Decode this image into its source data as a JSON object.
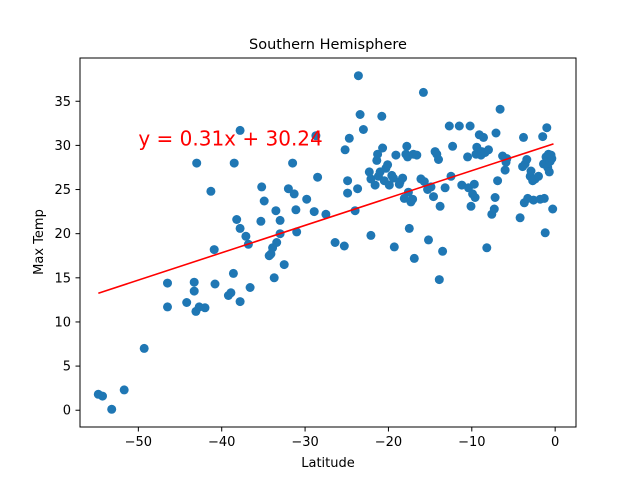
{
  "chart_data": {
    "type": "scatter",
    "title": "Southern Hemisphere",
    "xlabel": "Latitude",
    "ylabel": "Max Temp",
    "xlim": [
      -57,
      2.5
    ],
    "ylim": [
      -1.9,
      39.9
    ],
    "xticks": [
      -50,
      -40,
      -30,
      -20,
      -10,
      0
    ],
    "yticks": [
      0,
      5,
      10,
      15,
      20,
      25,
      30,
      35
    ],
    "grid": false,
    "marker_color": "#1f77b4",
    "line_color": "#ff0000",
    "regression": {
      "slope": 0.31,
      "intercept": 30.24,
      "x_range": [
        -54.8,
        -0.2
      ]
    },
    "annotation": {
      "text": "y = 0.31x + 30.24",
      "x": -50,
      "y": 30,
      "color": "#ff0000"
    },
    "points": [
      [
        -54.8,
        1.8
      ],
      [
        -54.3,
        1.6
      ],
      [
        -53.2,
        0.1
      ],
      [
        -51.7,
        2.3
      ],
      [
        -49.3,
        7.0
      ],
      [
        -46.5,
        14.4
      ],
      [
        -46.5,
        11.7
      ],
      [
        -44.2,
        12.2
      ],
      [
        -43.3,
        14.5
      ],
      [
        -43.3,
        13.5
      ],
      [
        -43.1,
        11.2
      ],
      [
        -42.7,
        11.7
      ],
      [
        -43.0,
        28.0
      ],
      [
        -42.0,
        11.6
      ],
      [
        -41.3,
        24.8
      ],
      [
        -40.9,
        18.2
      ],
      [
        -40.8,
        14.3
      ],
      [
        -39.2,
        13.0
      ],
      [
        -38.9,
        13.3
      ],
      [
        -38.6,
        15.5
      ],
      [
        -38.5,
        28.0
      ],
      [
        -38.2,
        21.6
      ],
      [
        -37.8,
        20.6
      ],
      [
        -37.8,
        12.3
      ],
      [
        -37.8,
        31.7
      ],
      [
        -37.1,
        19.7
      ],
      [
        -36.8,
        18.8
      ],
      [
        -36.6,
        13.9
      ],
      [
        -35.3,
        21.4
      ],
      [
        -35.2,
        25.3
      ],
      [
        -34.9,
        23.7
      ],
      [
        -34.3,
        17.5
      ],
      [
        -34.1,
        17.7
      ],
      [
        -33.9,
        18.4
      ],
      [
        -33.7,
        15.0
      ],
      [
        -33.5,
        22.6
      ],
      [
        -33.4,
        19.0
      ],
      [
        -33.0,
        21.5
      ],
      [
        -33.0,
        20.0
      ],
      [
        -32.5,
        16.5
      ],
      [
        -32.0,
        25.1
      ],
      [
        -31.5,
        28.0
      ],
      [
        -31.3,
        24.5
      ],
      [
        -31.1,
        22.7
      ],
      [
        -31.0,
        20.2
      ],
      [
        -29.8,
        23.9
      ],
      [
        -28.9,
        22.5
      ],
      [
        -28.7,
        31.1
      ],
      [
        -28.5,
        26.4
      ],
      [
        -27.5,
        22.2
      ],
      [
        -26.4,
        19.0
      ],
      [
        -25.3,
        18.6
      ],
      [
        -25.2,
        29.5
      ],
      [
        -24.9,
        26.0
      ],
      [
        -24.9,
        24.6
      ],
      [
        -24.7,
        30.8
      ],
      [
        -24.0,
        22.6
      ],
      [
        -23.7,
        25.1
      ],
      [
        -23.6,
        37.9
      ],
      [
        -23.4,
        33.5
      ],
      [
        -23.0,
        31.8
      ],
      [
        -22.3,
        27.0
      ],
      [
        -22.1,
        26.2
      ],
      [
        -22.1,
        19.8
      ],
      [
        -21.6,
        25.5
      ],
      [
        -21.4,
        28.3
      ],
      [
        -21.3,
        29.0
      ],
      [
        -21.2,
        26.5
      ],
      [
        -21.0,
        27.0
      ],
      [
        -20.8,
        33.3
      ],
      [
        -20.7,
        29.7
      ],
      [
        -20.5,
        26.0
      ],
      [
        -20.3,
        27.4
      ],
      [
        -20.1,
        27.8
      ],
      [
        -19.9,
        25.5
      ],
      [
        -19.6,
        26.6
      ],
      [
        -19.4,
        26.3
      ],
      [
        -19.3,
        18.5
      ],
      [
        -19.1,
        28.9
      ],
      [
        -18.7,
        25.6
      ],
      [
        -18.6,
        25.9
      ],
      [
        -18.3,
        26.3
      ],
      [
        -18.1,
        24.0
      ],
      [
        -17.9,
        29.0
      ],
      [
        -17.7,
        28.7
      ],
      [
        -17.8,
        29.9
      ],
      [
        -17.6,
        24.7
      ],
      [
        -17.5,
        20.6
      ],
      [
        -17.3,
        23.6
      ],
      [
        -17.1,
        23.9
      ],
      [
        -17.0,
        29.0
      ],
      [
        -16.9,
        17.2
      ],
      [
        -16.6,
        28.9
      ],
      [
        -16.1,
        26.2
      ],
      [
        -15.8,
        36.0
      ],
      [
        -15.7,
        25.9
      ],
      [
        -15.3,
        25.0
      ],
      [
        -15.2,
        19.3
      ],
      [
        -14.9,
        25.3
      ],
      [
        -14.6,
        24.2
      ],
      [
        -14.4,
        29.3
      ],
      [
        -14.2,
        29.0
      ],
      [
        -14.0,
        28.4
      ],
      [
        -13.9,
        14.8
      ],
      [
        -13.8,
        23.1
      ],
      [
        -13.5,
        18.0
      ],
      [
        -13.2,
        25.2
      ],
      [
        -12.7,
        32.2
      ],
      [
        -12.5,
        26.5
      ],
      [
        -12.3,
        29.9
      ],
      [
        -11.5,
        32.2
      ],
      [
        -11.2,
        25.5
      ],
      [
        -10.5,
        28.7
      ],
      [
        -10.4,
        25.2
      ],
      [
        -10.2,
        32.2
      ],
      [
        -10.1,
        23.1
      ],
      [
        -9.9,
        24.5
      ],
      [
        -9.7,
        25.6
      ],
      [
        -9.6,
        24.1
      ],
      [
        -9.5,
        29.0
      ],
      [
        -9.4,
        29.8
      ],
      [
        -9.1,
        31.2
      ],
      [
        -8.9,
        28.9
      ],
      [
        -8.8,
        29.3
      ],
      [
        -8.6,
        30.9
      ],
      [
        -8.4,
        29.2
      ],
      [
        -8.2,
        18.4
      ],
      [
        -8.0,
        29.5
      ],
      [
        -7.6,
        22.2
      ],
      [
        -7.3,
        22.8
      ],
      [
        -7.2,
        24.1
      ],
      [
        -7.1,
        31.4
      ],
      [
        -6.9,
        26.0
      ],
      [
        -6.6,
        34.1
      ],
      [
        -6.3,
        28.8
      ],
      [
        -6.0,
        27.2
      ],
      [
        -5.9,
        28.1
      ],
      [
        -5.8,
        28.5
      ],
      [
        -4.2,
        21.8
      ],
      [
        -3.9,
        27.6
      ],
      [
        -3.8,
        30.9
      ],
      [
        -3.7,
        23.5
      ],
      [
        -3.6,
        27.9
      ],
      [
        -3.4,
        28.4
      ],
      [
        -3.3,
        24.0
      ],
      [
        -3.0,
        26.5
      ],
      [
        -2.9,
        27.1
      ],
      [
        -2.7,
        26.0
      ],
      [
        -2.6,
        23.8
      ],
      [
        -2.4,
        26.2
      ],
      [
        -2.0,
        26.5
      ],
      [
        -1.8,
        23.9
      ],
      [
        -1.5,
        31.0
      ],
      [
        -1.4,
        27.9
      ],
      [
        -1.3,
        24.0
      ],
      [
        -1.2,
        20.1
      ],
      [
        -1.1,
        28.7
      ],
      [
        -1.0,
        32.0
      ],
      [
        -0.9,
        27.5
      ],
      [
        -0.8,
        29.0
      ],
      [
        -0.7,
        27.0
      ],
      [
        -0.6,
        28.2
      ],
      [
        -0.4,
        28.5
      ],
      [
        -0.3,
        22.8
      ],
      [
        -0.5,
        28.9
      ]
    ]
  }
}
